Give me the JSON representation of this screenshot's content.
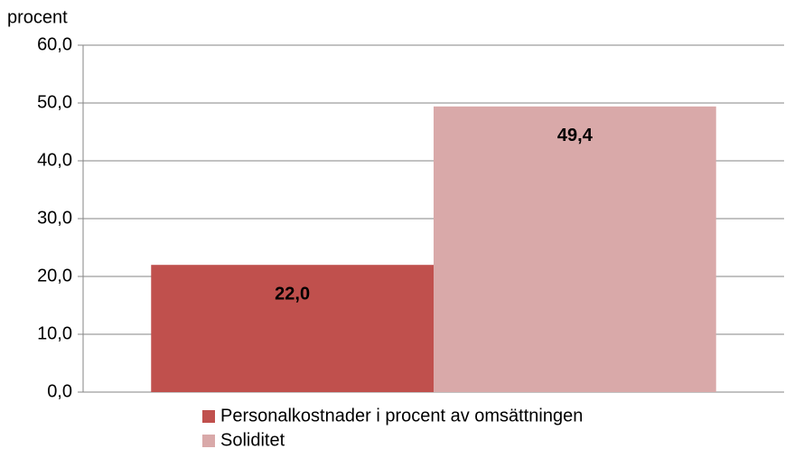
{
  "chart_data": {
    "type": "bar",
    "y_label": "procent",
    "categories": [
      null
    ],
    "series": [
      {
        "name": "Personalkostnader i procent av omsättningen",
        "color": "#c0504d",
        "values": [
          22.0
        ],
        "value_labels": [
          "22,0"
        ]
      },
      {
        "name": "Soliditet",
        "color": "#d9a9a9",
        "values": [
          49.4
        ],
        "value_labels": [
          "49,4"
        ]
      }
    ],
    "ylim": [
      0,
      60
    ],
    "yticks": [
      {
        "value": 0,
        "label": "0,0"
      },
      {
        "value": 10,
        "label": "10,0"
      },
      {
        "value": 20,
        "label": "20,0"
      },
      {
        "value": 30,
        "label": "30,0"
      },
      {
        "value": 40,
        "label": "40,0"
      },
      {
        "value": 50,
        "label": "50,0"
      },
      {
        "value": 60,
        "label": "60,0"
      }
    ],
    "grid": true,
    "legend": "bottom"
  }
}
